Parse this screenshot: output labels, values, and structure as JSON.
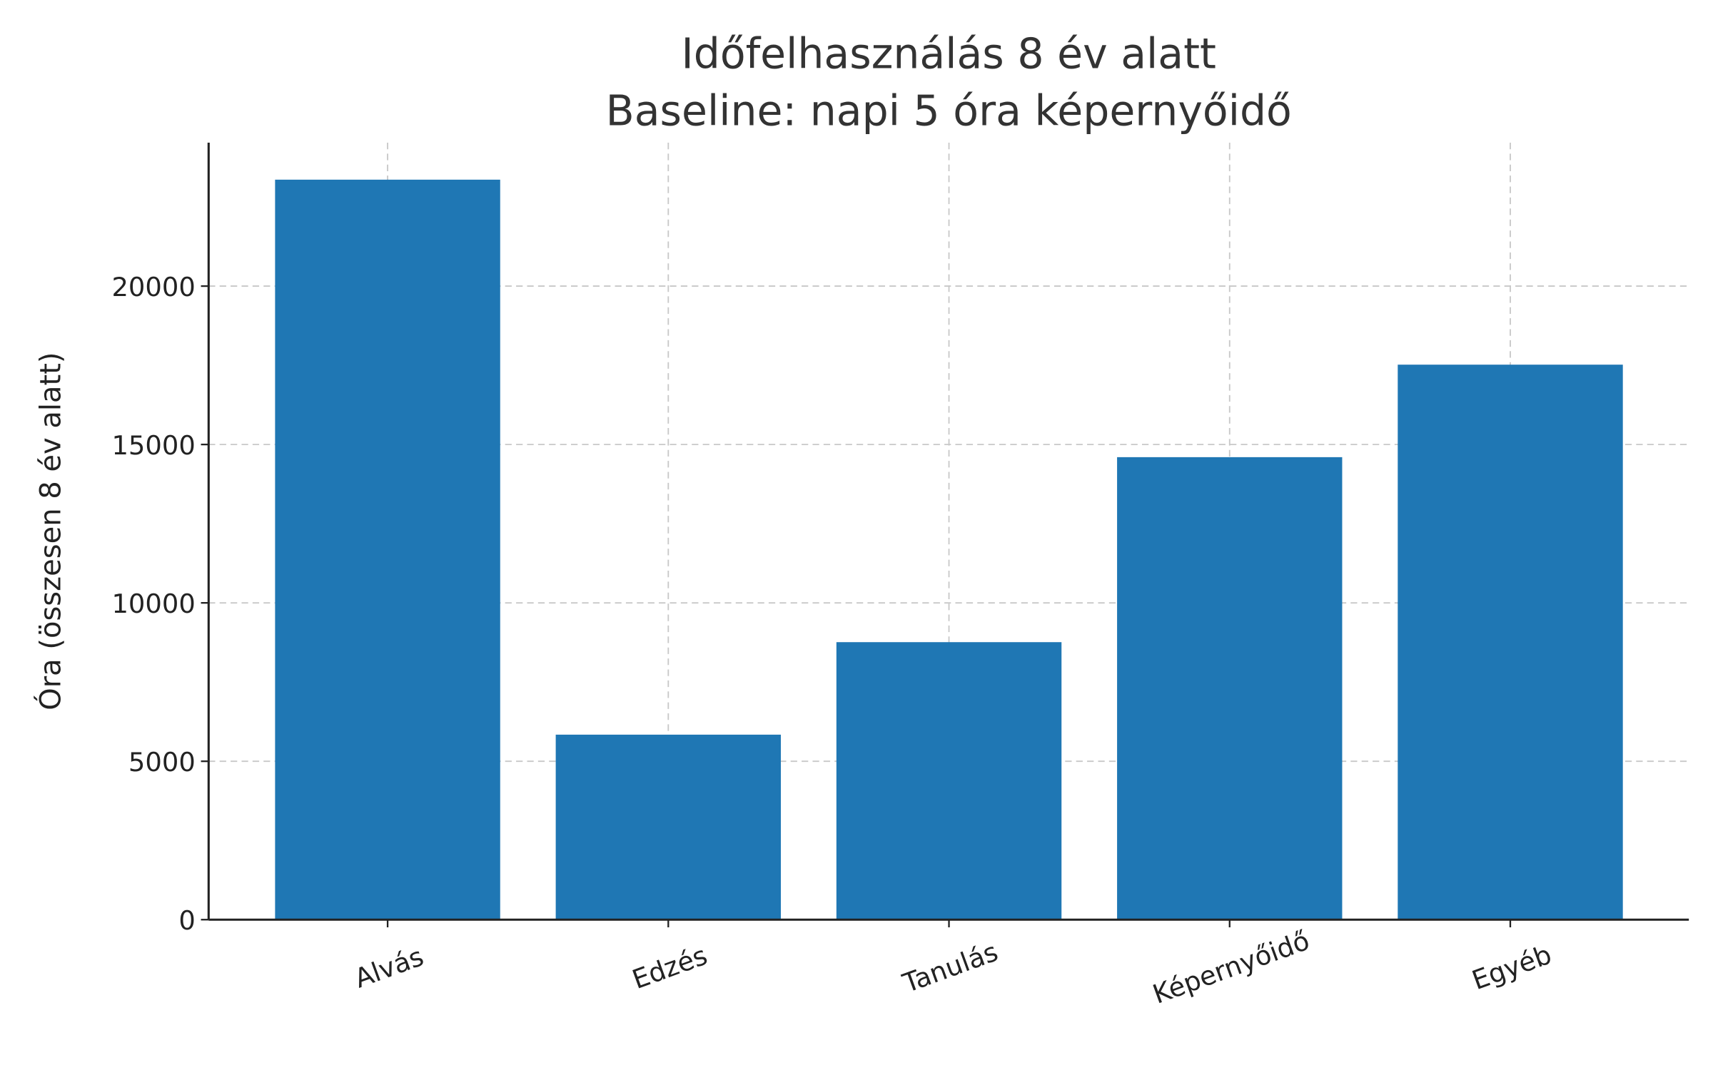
{
  "chart_data": {
    "type": "bar",
    "title": "Időfelhasználás 8 év alatt",
    "subtitle": "Baseline: napi 5 óra képernyőidő",
    "xlabel": "",
    "ylabel": "Óra (összesen 8 év alatt)",
    "categories": [
      "Alvás",
      "Edzés",
      "Tanulás",
      "Képernyőidő",
      "Egyéb"
    ],
    "values": [
      23360,
      5840,
      8760,
      14600,
      17520
    ],
    "ylim": [
      0,
      24528
    ],
    "yticks": [
      "0",
      "5000",
      "10000",
      "15000",
      "20000"
    ],
    "grid": true,
    "bar_color": "#1f77b4"
  }
}
